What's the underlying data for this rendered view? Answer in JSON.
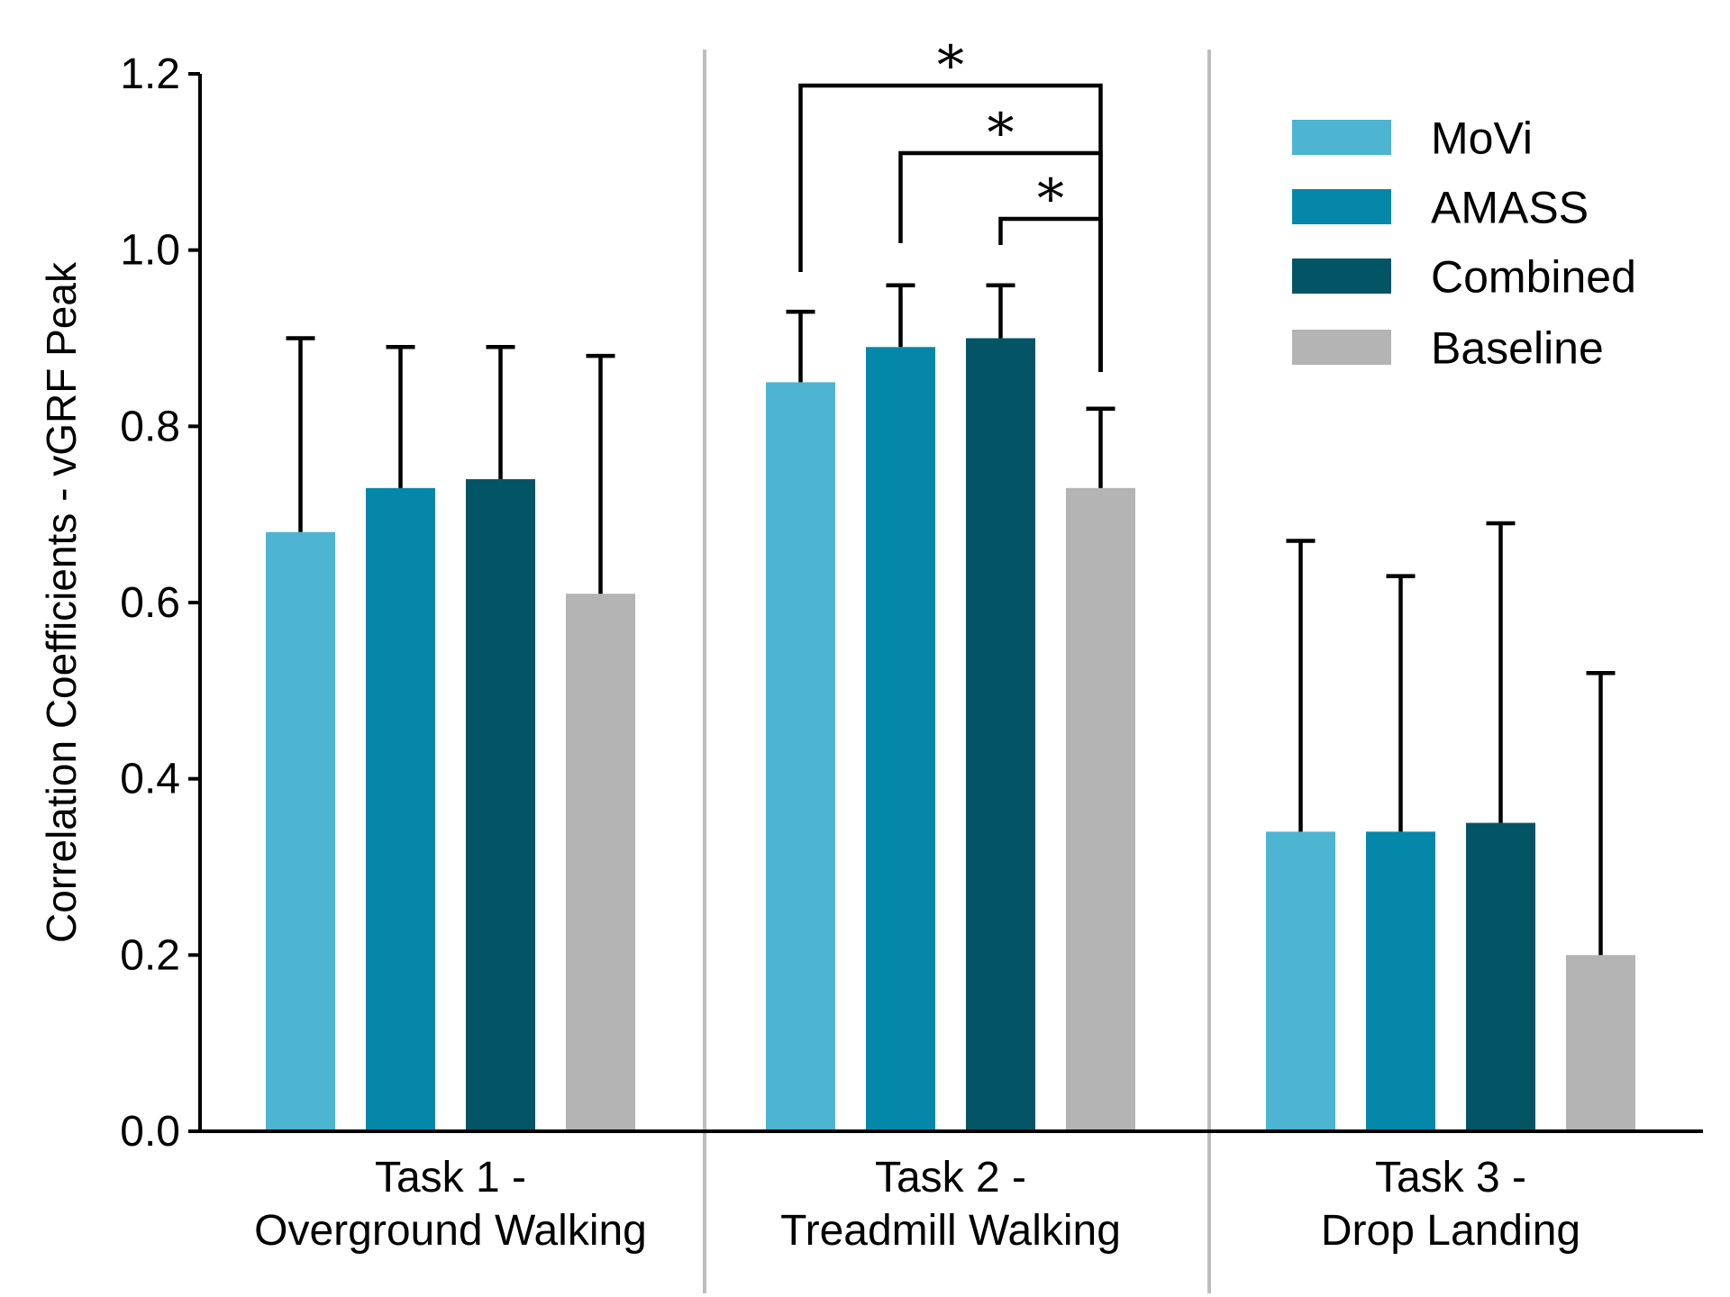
{
  "chart_data": {
    "type": "bar",
    "title": "",
    "xlabel": "",
    "ylabel": "Correlation Coefficients - vGRF Peak",
    "ylim": [
      0,
      1.2
    ],
    "yticks": [
      "0.0",
      "0.2",
      "0.4",
      "0.6",
      "0.8",
      "1.0",
      "1.2"
    ],
    "categories": [
      [
        "Task 1 -",
        "Overground Walking"
      ],
      [
        "Task 2 -",
        "Treadmill Walking"
      ],
      [
        "Task 3 -",
        "Drop Landing"
      ]
    ],
    "series": [
      {
        "name": "MoVi",
        "color": "#4db4d2",
        "values": [
          0.68,
          0.85,
          0.34
        ],
        "errors": [
          0.22,
          0.08,
          0.33
        ]
      },
      {
        "name": "AMASS",
        "color": "#0587aa",
        "values": [
          0.73,
          0.89,
          0.34
        ],
        "errors": [
          0.16,
          0.07,
          0.29
        ]
      },
      {
        "name": "Combined",
        "color": "#035566",
        "values": [
          0.74,
          0.9,
          0.35
        ],
        "errors": [
          0.15,
          0.06,
          0.34
        ]
      },
      {
        "name": "Baseline",
        "color": "#b4b4b4",
        "values": [
          0.61,
          0.73,
          0.2
        ],
        "errors": [
          0.27,
          0.09,
          0.32
        ]
      }
    ],
    "significance": [
      {
        "category": 1,
        "from_series": 0,
        "to_series": 3,
        "label": "*"
      },
      {
        "category": 1,
        "from_series": 1,
        "to_series": 3,
        "label": "*"
      },
      {
        "category": 1,
        "from_series": 2,
        "to_series": 3,
        "label": "*"
      }
    ],
    "legend_position": "top-right",
    "grid": false,
    "divider_color": "#bdbdbd"
  }
}
